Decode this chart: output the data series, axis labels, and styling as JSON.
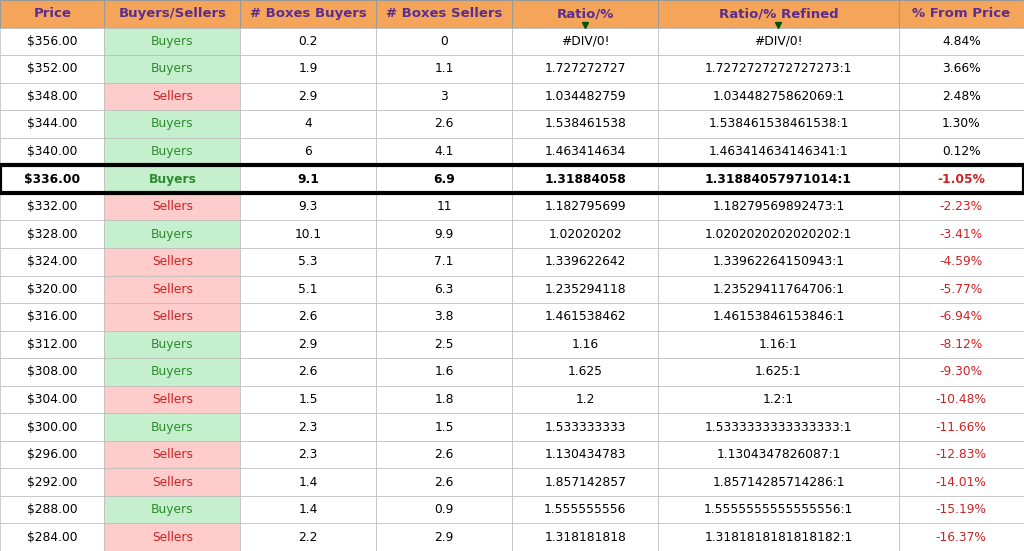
{
  "header": [
    "Price",
    "Buyers/Sellers",
    "# Boxes Buyers",
    "# Boxes Sellers",
    "Ratio/%",
    "Ratio/% Refined",
    "% From Price"
  ],
  "rows": [
    [
      "$356.00",
      "Buyers",
      "0.2",
      "0",
      "#DIV/0!",
      "#DIV/0!",
      "4.84%"
    ],
    [
      "$352.00",
      "Buyers",
      "1.9",
      "1.1",
      "1.727272727",
      "1.7272727272727273:1",
      "3.66%"
    ],
    [
      "$348.00",
      "Sellers",
      "2.9",
      "3",
      "1.034482759",
      "1.03448275862069:1",
      "2.48%"
    ],
    [
      "$344.00",
      "Buyers",
      "4",
      "2.6",
      "1.538461538",
      "1.538461538461538:1",
      "1.30%"
    ],
    [
      "$340.00",
      "Buyers",
      "6",
      "4.1",
      "1.463414634",
      "1.463414634146341:1",
      "0.12%"
    ],
    [
      "$336.00",
      "Buyers",
      "9.1",
      "6.9",
      "1.31884058",
      "1.31884057971014:1",
      "-1.05%"
    ],
    [
      "$332.00",
      "Sellers",
      "9.3",
      "11",
      "1.182795699",
      "1.18279569892473:1",
      "-2.23%"
    ],
    [
      "$328.00",
      "Buyers",
      "10.1",
      "9.9",
      "1.02020202",
      "1.0202020202020202:1",
      "-3.41%"
    ],
    [
      "$324.00",
      "Sellers",
      "5.3",
      "7.1",
      "1.339622642",
      "1.33962264150943:1",
      "-4.59%"
    ],
    [
      "$320.00",
      "Sellers",
      "5.1",
      "6.3",
      "1.235294118",
      "1.23529411764706:1",
      "-5.77%"
    ],
    [
      "$316.00",
      "Sellers",
      "2.6",
      "3.8",
      "1.461538462",
      "1.46153846153846:1",
      "-6.94%"
    ],
    [
      "$312.00",
      "Buyers",
      "2.9",
      "2.5",
      "1.16",
      "1.16:1",
      "-8.12%"
    ],
    [
      "$308.00",
      "Buyers",
      "2.6",
      "1.6",
      "1.625",
      "1.625:1",
      "-9.30%"
    ],
    [
      "$304.00",
      "Sellers",
      "1.5",
      "1.8",
      "1.2",
      "1.2:1",
      "-10.48%"
    ],
    [
      "$300.00",
      "Buyers",
      "2.3",
      "1.5",
      "1.533333333",
      "1.5333333333333333:1",
      "-11.66%"
    ],
    [
      "$296.00",
      "Sellers",
      "2.3",
      "2.6",
      "1.130434783",
      "1.1304347826087:1",
      "-12.83%"
    ],
    [
      "$292.00",
      "Sellers",
      "1.4",
      "2.6",
      "1.857142857",
      "1.85714285714286:1",
      "-14.01%"
    ],
    [
      "$288.00",
      "Buyers",
      "1.4",
      "0.9",
      "1.555555556",
      "1.5555555555555556:1",
      "-15.19%"
    ],
    [
      "$284.00",
      "Sellers",
      "2.2",
      "2.9",
      "1.318181818",
      "1.3181818181818182:1",
      "-16.37%"
    ]
  ],
  "bold_row_index": 5,
  "header_bg": "#F5A55A",
  "header_fg": "#5B2D8E",
  "buyers_bg": "#C6EFCE",
  "sellers_bg": "#FFCCCC",
  "buyers_fg": "#2D8B2D",
  "sellers_fg": "#CC2222",
  "default_bg": "#FFFFFF",
  "default_fg": "#000000",
  "bold_row_border_color": "#000000",
  "figsize": [
    10.24,
    5.51
  ],
  "dpi": 100,
  "col_weights": [
    1.0,
    1.3,
    1.3,
    1.3,
    1.4,
    2.3,
    1.2
  ]
}
